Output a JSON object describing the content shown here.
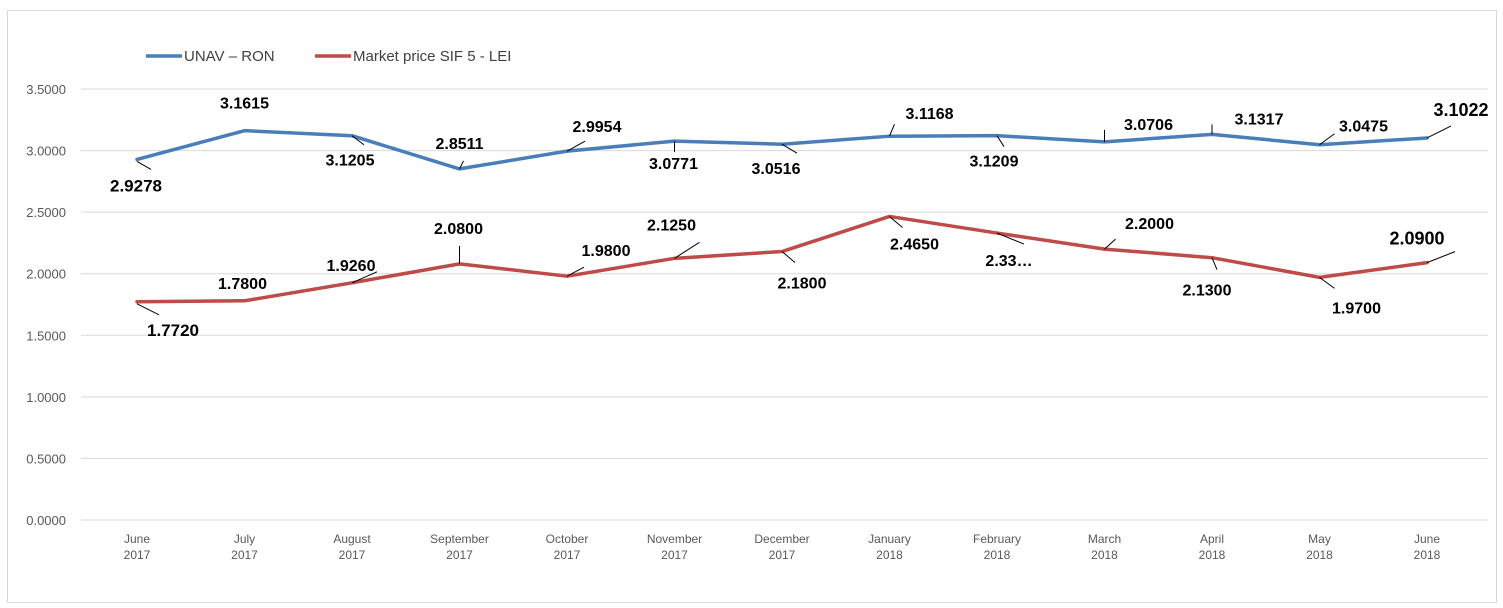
{
  "chart_data": {
    "type": "line",
    "categories": [
      [
        "June",
        "2017"
      ],
      [
        "July",
        "2017"
      ],
      [
        "August",
        "2017"
      ],
      [
        "September",
        "2017"
      ],
      [
        "October",
        "2017"
      ],
      [
        "November",
        "2017"
      ],
      [
        "December",
        "2017"
      ],
      [
        "January",
        "2018"
      ],
      [
        "February",
        "2018"
      ],
      [
        "March",
        "2018"
      ],
      [
        "April",
        "2018"
      ],
      [
        "May",
        "2018"
      ],
      [
        "June",
        "2018"
      ]
    ],
    "series": [
      {
        "name": "UNAV – RON",
        "color": "#4a7ebb",
        "values": [
          2.9278,
          3.1615,
          3.1205,
          2.8511,
          2.9954,
          3.0771,
          3.0516,
          3.1168,
          3.1209,
          3.0706,
          3.1317,
          3.0475,
          3.1022
        ],
        "labels": [
          "2.9278",
          "3.1615",
          "3.1205",
          "2.8511",
          "2.9954",
          "3.0771",
          "3.0516",
          "3.1168",
          "3.1209",
          "3.0706",
          "3.1317",
          "3.0475",
          "3.1022"
        ]
      },
      {
        "name": "Market price SIF 5 - LEI",
        "color": "#be4b48",
        "values": [
          1.772,
          1.78,
          1.926,
          2.08,
          1.98,
          2.125,
          2.18,
          2.465,
          2.33,
          2.2,
          2.13,
          1.97,
          2.09
        ],
        "labels": [
          "1.7720",
          "1.7800",
          "1.9260",
          "2.0800",
          "1.9800",
          "2.1250",
          "2.1800",
          "2.4650",
          "2.33…",
          "2.2000",
          "2.1300",
          "1.9700",
          "2.0900"
        ]
      }
    ],
    "y_ticks": [
      "0.0000",
      "0.5000",
      "1.0000",
      "1.5000",
      "2.0000",
      "2.5000",
      "3.0000",
      "3.5000"
    ],
    "ylim": [
      0,
      3.5
    ],
    "grid": true,
    "legend": "top-left"
  }
}
